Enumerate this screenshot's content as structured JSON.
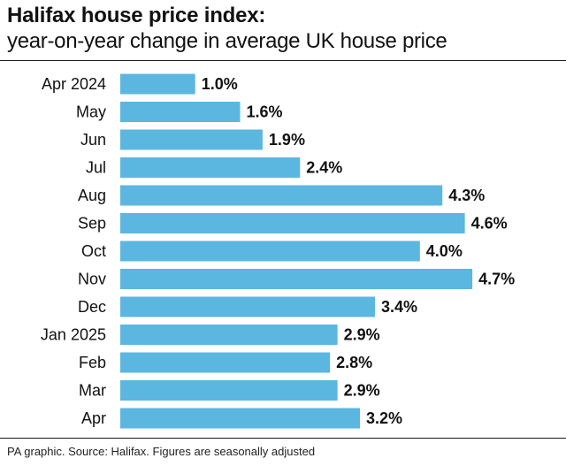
{
  "header": {
    "title": "Halifax house price index:",
    "subtitle": "year-on-year change in average UK house price"
  },
  "footer": {
    "source": "PA graphic. Source: Halifax. Figures are seasonally adjusted"
  },
  "colors": {
    "bar": "#5bb7e0",
    "text": "#111111"
  },
  "chart_data": {
    "type": "bar",
    "orientation": "horizontal",
    "categories": [
      "Apr 2024",
      "May",
      "Jun",
      "Jul",
      "Aug",
      "Sep",
      "Oct",
      "Nov",
      "Dec",
      "Jan 2025",
      "Feb",
      "Mar",
      "Apr"
    ],
    "values": [
      1.0,
      1.6,
      1.9,
      2.4,
      4.3,
      4.6,
      4.0,
      4.7,
      3.4,
      2.9,
      2.8,
      2.9,
      3.2
    ],
    "value_labels": [
      "1.0%",
      "1.6%",
      "1.9%",
      "2.4%",
      "4.3%",
      "4.6%",
      "4.0%",
      "4.7%",
      "3.4%",
      "2.9%",
      "2.8%",
      "2.9%",
      "3.2%"
    ],
    "title": "Halifax house price index:",
    "subtitle": "year-on-year change in average UK house price",
    "xlabel": "",
    "ylabel": "",
    "grid": false,
    "legend": "none"
  }
}
